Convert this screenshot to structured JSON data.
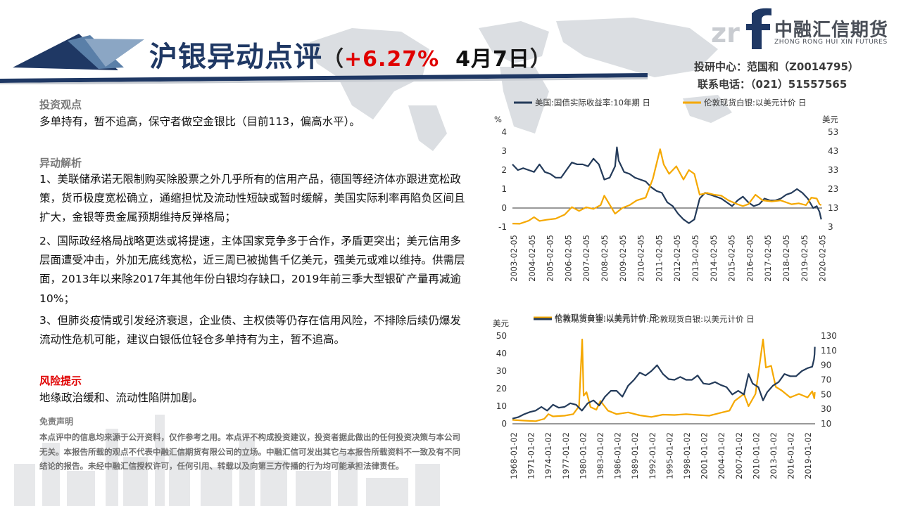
{
  "title": {
    "main_1": "沪银",
    "main_2": "异动点评",
    "paren_open": "（",
    "change": "+6.27%",
    "date": "4月7日",
    "paren_close": "）"
  },
  "logo": {
    "cn": "中融汇信期货",
    "en": "ZHONG RONG HUI XIN FUTURES"
  },
  "contact": {
    "analyst": "投研中心：范国和（Z0014795）",
    "phone": "联系电话：（021）51557565"
  },
  "sections": {
    "view_heading": "投资观点",
    "view_text": "多单持有，暂不追高，保守者做空金银比（目前113，偏高水平）。",
    "analysis_heading": "异动解析",
    "analysis_p1": "1、美联储承诺无限制购买除股票之外几乎所有的信用产品，德国等经济体亦跟进宽松政策，货币极度宽松确立，通缩担忧及流动性短缺或暂时缓解，美国实际利率再陷负区间且扩大，金银等贵金属预期维持反弹格局；",
    "analysis_p2": "2、国际政经格局战略更迭或将提速，主体国家竞争多于合作，矛盾更突出；美元信用多层面遭受冲击，外加无底线宽松，近三周已被抛售千亿美元，强美元或难以维持。供需层面，2013年以来除2017年其他年份白银均存缺口，2019年前三季大型银矿产量再减逾10%；",
    "analysis_p3": "3、但肺炎疫情或引发经济衰退，企业债、主权债等仍存在信用风险，不排除后续仍爆发流动性危机可能，建议白银低位轻仓多单持有为主，暂不追高。",
    "risk_heading": "风险提示",
    "risk_text": "地缘政治缓和、流动性陷阱加剧。",
    "disclaimer_heading": "免责声明",
    "disclaimer_text": "本点评中的信息均来源于公开资料，仅作参考之用。本点评不构成投资建议，投资者据此做出的任何投资决策与本公司无关。本报告所载的观点不代表中融汇信期货有限公司的立场。中融汇信可发出其它与本报告所载资料不一致及有不同结论的报告。未经中融汇信授权许可，任何引用、转载以及向第三方传播的行为均可能承担法律责任。"
  },
  "colors": {
    "navy": "#1f3864",
    "red": "#e00000",
    "series_dark": "#243b5a",
    "series_gold": "#f5a800"
  },
  "chart_data": [
    {
      "type": "line",
      "legend": [
        "美国:国债实际收益率:10年期 日",
        "伦敦现货白银:以美元计价 日"
      ],
      "left_unit": "%",
      "right_unit": "美元",
      "left_ticks": [
        "4",
        "3",
        "2",
        "1",
        "0",
        "-1"
      ],
      "right_ticks": [
        "53",
        "43",
        "33",
        "23",
        "13",
        "3"
      ],
      "x_ticks": [
        "2003-02-05",
        "2004-02-05",
        "2005-02-05",
        "2006-02-05",
        "2007-02-05",
        "2008-02-05",
        "2009-02-05",
        "2010-02-05",
        "2011-02-05",
        "2012-02-05",
        "2013-02-05",
        "2014-02-05",
        "2015-02-05",
        "2016-02-05",
        "2017-02-05",
        "2018-02-05",
        "2019-02-05",
        "2020-02-05"
      ],
      "ylim_left": [
        -1,
        4
      ],
      "ylim_right": [
        3,
        53
      ],
      "series": [
        {
          "name": "美国:国债实际收益率:10年期 日",
          "axis": "left",
          "x": [
            2003.1,
            2003.4,
            2003.7,
            2004.0,
            2004.3,
            2004.6,
            2004.9,
            2005.2,
            2005.5,
            2005.8,
            2006.1,
            2006.4,
            2006.7,
            2007.0,
            2007.3,
            2007.6,
            2007.9,
            2008.2,
            2008.5,
            2008.8,
            2008.9,
            2009.0,
            2009.3,
            2009.6,
            2009.9,
            2010.2,
            2010.5,
            2010.8,
            2011.1,
            2011.4,
            2011.7,
            2012.0,
            2012.3,
            2012.6,
            2012.9,
            2013.2,
            2013.5,
            2013.8,
            2014.1,
            2014.4,
            2014.7,
            2015.0,
            2015.3,
            2015.6,
            2015.9,
            2016.2,
            2016.5,
            2016.8,
            2017.1,
            2017.4,
            2017.7,
            2018.0,
            2018.3,
            2018.6,
            2018.9,
            2019.2,
            2019.5,
            2019.8,
            2020.0,
            2020.15,
            2020.25
          ],
          "values": [
            2.3,
            2.0,
            2.1,
            2.0,
            1.9,
            2.3,
            1.9,
            1.8,
            1.6,
            1.6,
            2.0,
            2.4,
            2.3,
            2.3,
            2.2,
            2.6,
            2.3,
            1.5,
            1.6,
            2.2,
            3.2,
            2.5,
            1.9,
            1.8,
            1.6,
            1.5,
            1.4,
            1.1,
            0.9,
            0.8,
            0.3,
            0.1,
            -0.3,
            -0.6,
            -0.8,
            -0.6,
            0.5,
            0.8,
            0.7,
            0.6,
            0.5,
            0.3,
            0.1,
            0.4,
            0.6,
            0.3,
            0.1,
            0.2,
            0.5,
            0.4,
            0.4,
            0.5,
            0.7,
            0.8,
            1.0,
            0.8,
            0.5,
            0.0,
            0.1,
            -0.2,
            -0.6
          ]
        },
        {
          "name": "伦敦现货白银:以美元计价 日",
          "axis": "right",
          "x": [
            2003.1,
            2003.5,
            2004.0,
            2004.3,
            2004.6,
            2005.0,
            2005.5,
            2006.0,
            2006.4,
            2006.8,
            2007.2,
            2007.6,
            2008.0,
            2008.2,
            2008.8,
            2009.2,
            2009.6,
            2010.0,
            2010.5,
            2010.9,
            2011.3,
            2011.5,
            2011.8,
            2012.2,
            2012.6,
            2012.9,
            2013.2,
            2013.5,
            2013.9,
            2014.3,
            2014.7,
            2015.1,
            2015.6,
            2015.9,
            2016.2,
            2016.6,
            2017.0,
            2017.5,
            2018.0,
            2018.6,
            2019.0,
            2019.4,
            2019.7,
            2020.0,
            2020.15,
            2020.25
          ],
          "values": [
            4.8,
            4.7,
            6.3,
            8.2,
            6.2,
            6.8,
            7.4,
            9.5,
            13.5,
            11.5,
            13.4,
            12.5,
            14.5,
            19.5,
            10.0,
            13.0,
            14.5,
            17.0,
            18.5,
            28.5,
            44.0,
            36.0,
            31.0,
            35.0,
            28.0,
            33.0,
            31.0,
            20.0,
            21.0,
            20.0,
            19.5,
            17.0,
            15.0,
            14.0,
            15.0,
            20.0,
            17.0,
            16.5,
            17.0,
            15.0,
            15.5,
            14.5,
            18.5,
            18.0,
            15.0,
            14.5
          ]
        }
      ]
    },
    {
      "type": "line",
      "legend": [
        "伦敦现货白银:以美元计价 日",
        "伦敦现货黄金:以美元计价:/伦敦现货白银:以美元计价 日"
      ],
      "left_unit": "美元",
      "left_ticks": [
        "50",
        "40",
        "30",
        "20",
        "10",
        "0"
      ],
      "right_ticks": [
        "130",
        "110",
        "90",
        "70",
        "50",
        "30",
        "10"
      ],
      "x_ticks": [
        "1968-01-02",
        "1971-01-02",
        "1974-01-02",
        "1977-01-02",
        "1980-01-02",
        "1983-01-02",
        "1986-01-02",
        "1989-01-02",
        "1992-01-02",
        "1995-01-02",
        "1998-01-02",
        "2001-01-02",
        "2004-01-02",
        "2007-01-02",
        "2010-01-02",
        "2013-01-02",
        "2016-01-02",
        "2019-01-02"
      ],
      "ylim_left": [
        0,
        50
      ],
      "ylim_right": [
        10,
        130
      ],
      "series": [
        {
          "name": "伦敦现货白银:以美元计价 日",
          "axis": "left",
          "x": [
            1968.0,
            1970.0,
            1972.0,
            1973.5,
            1974.2,
            1975.0,
            1977.0,
            1978.5,
            1979.5,
            1980.05,
            1980.3,
            1980.8,
            1981.5,
            1982.5,
            1983.2,
            1984.5,
            1986.0,
            1988.0,
            1990.0,
            1992.0,
            1994.0,
            1996.0,
            1998.0,
            2000.0,
            2002.0,
            2004.0,
            2005.5,
            2006.4,
            2008.0,
            2008.8,
            2010.0,
            2011.3,
            2011.8,
            2012.7,
            2013.5,
            2014.5,
            2016.0,
            2017.5,
            2019.0,
            2019.8,
            2020.15,
            2020.25
          ],
          "values": [
            2.2,
            1.8,
            1.5,
            2.8,
            5.5,
            4.2,
            4.6,
            5.5,
            10.0,
            48.0,
            16.0,
            18.0,
            9.5,
            8.0,
            13.0,
            7.5,
            5.5,
            6.5,
            4.8,
            3.9,
            5.2,
            5.0,
            5.5,
            5.0,
            4.6,
            6.3,
            7.5,
            13.0,
            17.0,
            10.0,
            17.0,
            48.0,
            32.0,
            33.0,
            21.0,
            19.0,
            15.0,
            17.0,
            15.0,
            18.5,
            14.5,
            18.0
          ]
        },
        {
          "name": "伦敦现货黄金:以美元计价:/伦敦现货白银:以美元计价 日",
          "axis": "right",
          "x": [
            1968.0,
            1969.0,
            1970.0,
            1971.0,
            1972.0,
            1973.0,
            1974.0,
            1975.0,
            1976.0,
            1977.0,
            1978.0,
            1979.0,
            1980.0,
            1981.0,
            1982.0,
            1983.0,
            1984.0,
            1985.0,
            1986.0,
            1987.0,
            1988.0,
            1989.0,
            1990.0,
            1991.0,
            1992.0,
            1993.0,
            1994.0,
            1995.0,
            1996.0,
            1997.0,
            1998.0,
            1999.0,
            2000.0,
            2001.0,
            2002.0,
            2003.0,
            2004.0,
            2005.0,
            2006.0,
            2007.0,
            2008.0,
            2008.8,
            2009.5,
            2010.5,
            2011.3,
            2012.0,
            2013.0,
            2014.0,
            2015.0,
            2016.0,
            2017.0,
            2018.0,
            2019.0,
            2019.8,
            2020.1,
            2020.2,
            2020.25
          ],
          "values": [
            17,
            19,
            23,
            26,
            28,
            33,
            28,
            36,
            32,
            33,
            38,
            36,
            28,
            38,
            42,
            35,
            47,
            55,
            55,
            47,
            62,
            70,
            80,
            76,
            82,
            90,
            78,
            71,
            70,
            74,
            70,
            70,
            76,
            65,
            64,
            67,
            63,
            60,
            50,
            55,
            50,
            78,
            65,
            60,
            42,
            53,
            62,
            67,
            78,
            75,
            75,
            82,
            86,
            88,
            98,
            105,
            115
          ]
        }
      ]
    }
  ]
}
